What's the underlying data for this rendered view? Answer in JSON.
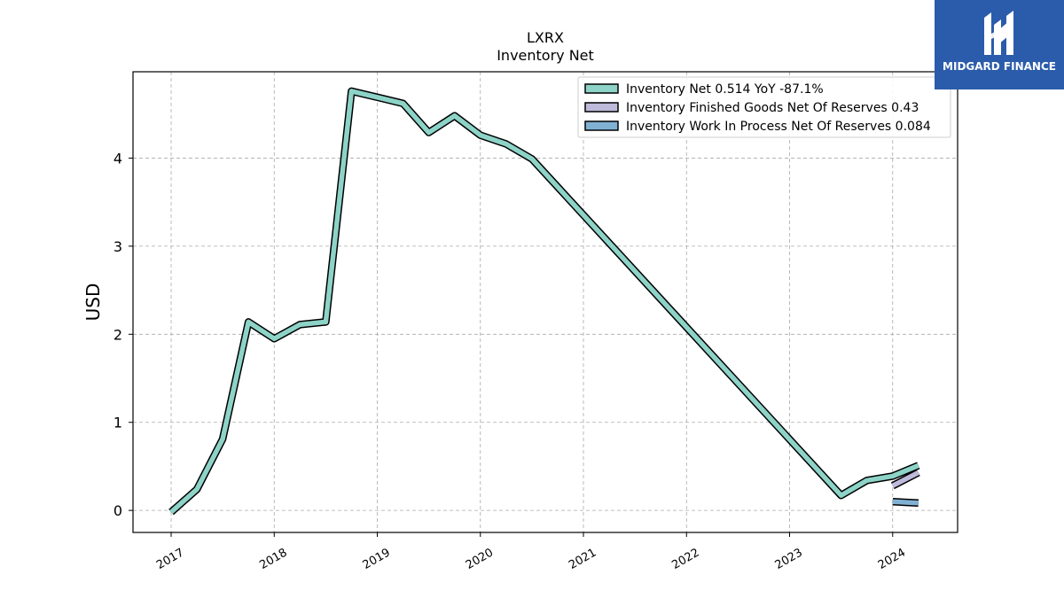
{
  "chart_data": {
    "type": "line",
    "title": "LXRX",
    "subtitle": "Inventory Net",
    "ylabel": "USD",
    "xlabel": "",
    "ylim": [
      -0.25,
      4.98
    ],
    "xlim": [
      2016.63,
      2024.63
    ],
    "x_ticks": [
      "2017",
      "2018",
      "2019",
      "2020",
      "2021",
      "2022",
      "2023",
      "2024"
    ],
    "y_ticks": [
      "0",
      "1",
      "2",
      "3",
      "4"
    ],
    "grid": true,
    "legend_position": "top-right",
    "series": [
      {
        "name": "Inventory Net",
        "legend_label": "Inventory Net  0.514 YoY -87.1%",
        "color": "#8dd3c7",
        "x": [
          2017.0,
          2017.25,
          2017.5,
          2017.75,
          2018.0,
          2018.25,
          2018.5,
          2018.75,
          2019.0,
          2019.25,
          2019.5,
          2019.75,
          2020.0,
          2020.25,
          2020.5,
          2023.5,
          2023.75,
          2024.0,
          2024.25
        ],
        "values": [
          -0.02,
          0.24,
          0.81,
          2.14,
          1.95,
          2.11,
          2.14,
          4.76,
          4.69,
          4.62,
          4.29,
          4.48,
          4.26,
          4.16,
          3.99,
          0.17,
          0.34,
          0.39,
          0.51
        ]
      },
      {
        "name": "Inventory Finished Goods Net Of Reserves",
        "legend_label": "Inventory Finished Goods Net Of Reserves  0.43",
        "color": "#bebada",
        "x": [
          2024.0,
          2024.25
        ],
        "values": [
          0.28,
          0.43
        ]
      },
      {
        "name": "Inventory Work In Process Net Of Reserves",
        "legend_label": "Inventory Work In Process Net Of Reserves  0.084",
        "color": "#80b1d3",
        "x": [
          2024.0,
          2024.25
        ],
        "values": [
          0.1,
          0.084
        ]
      }
    ]
  },
  "logo": {
    "text": "MIDGARD FINANCE",
    "color": "#2b5cab"
  }
}
